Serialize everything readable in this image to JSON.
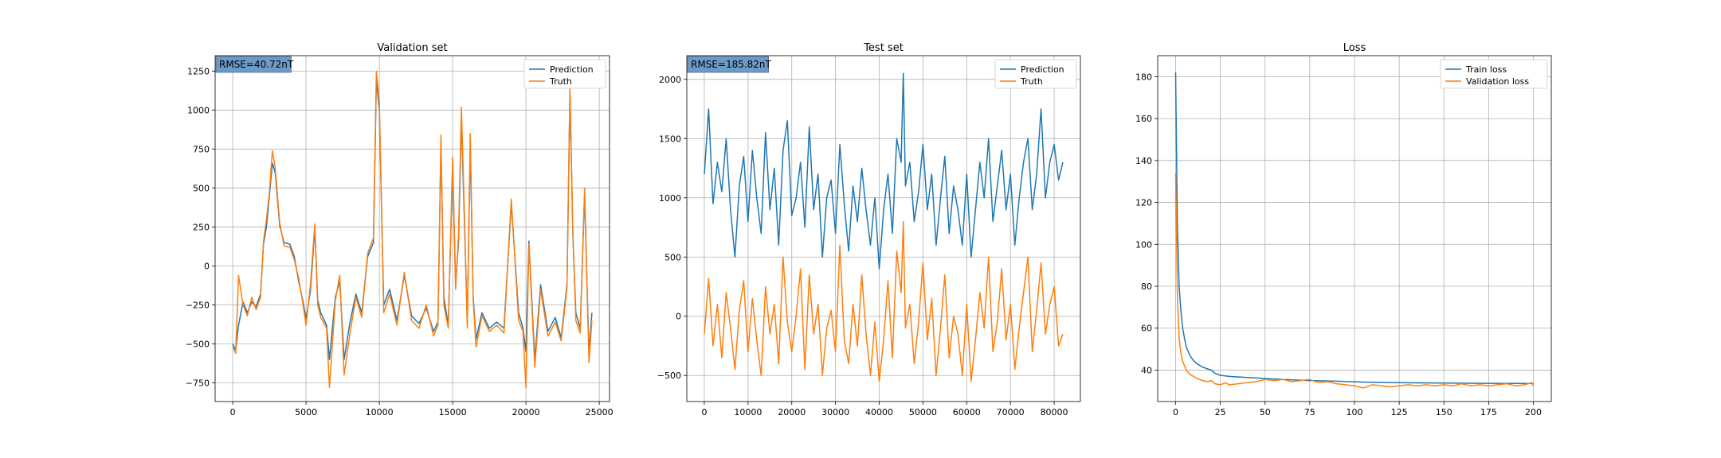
{
  "chart_data": [
    {
      "type": "line",
      "title": "Validation set",
      "xlabel": "",
      "ylabel": "",
      "xlim": [
        -1200,
        25700
      ],
      "ylim": [
        -870,
        1350
      ],
      "xticks": [
        0,
        5000,
        10000,
        15000,
        20000,
        25000
      ],
      "yticks": [
        -750,
        -500,
        -250,
        0,
        250,
        500,
        750,
        1000,
        1250
      ],
      "grid": true,
      "legend_position": "top-right",
      "annotation": "RMSE=40.72nT",
      "series": [
        {
          "name": "Prediction",
          "color": "#1f77b4",
          "x": [
            0,
            200,
            400,
            700,
            1000,
            1300,
            1600,
            1900,
            2100,
            2300,
            2500,
            2700,
            2900,
            3200,
            3500,
            3900,
            4200,
            4500,
            4800,
            5000,
            5300,
            5600,
            5800,
            6000,
            6400,
            6600,
            7000,
            7300,
            7600,
            8000,
            8400,
            8800,
            9200,
            9600,
            9800,
            10000,
            10300,
            10700,
            11200,
            11700,
            12200,
            12700,
            13200,
            13700,
            14000,
            14200,
            14400,
            14700,
            15000,
            15200,
            15400,
            15600,
            15800,
            16000,
            16200,
            16400,
            16600,
            17000,
            17500,
            18000,
            18500,
            19000,
            19500,
            19800,
            20000,
            20200,
            20600,
            21000,
            21500,
            22000,
            22400,
            22800,
            23000,
            23200,
            23400,
            23700,
            24000,
            24300,
            24500
          ],
          "values": [
            -500,
            -540,
            -380,
            -230,
            -300,
            -230,
            -260,
            -180,
            140,
            250,
            450,
            660,
            600,
            260,
            150,
            140,
            60,
            -100,
            -230,
            -340,
            -160,
            240,
            -220,
            -300,
            -380,
            -600,
            -200,
            -100,
            -600,
            -360,
            -180,
            -300,
            60,
            150,
            1200,
            1000,
            -250,
            -150,
            -350,
            -60,
            -320,
            -370,
            -270,
            -420,
            -360,
            780,
            -200,
            -380,
            640,
            -110,
            150,
            950,
            300,
            -360,
            770,
            -200,
            -470,
            -300,
            -400,
            -360,
            -400,
            400,
            -300,
            -400,
            -550,
            160,
            -600,
            -120,
            -420,
            -330,
            -460,
            -120,
            1100,
            200,
            -300,
            -400,
            460,
            -560,
            -300
          ]
        },
        {
          "name": "Truth",
          "color": "#ff7f0e",
          "x": [
            0,
            200,
            400,
            700,
            1000,
            1300,
            1600,
            1900,
            2100,
            2300,
            2500,
            2700,
            2900,
            3200,
            3500,
            3900,
            4200,
            4500,
            4800,
            5000,
            5300,
            5600,
            5800,
            6000,
            6400,
            6600,
            7000,
            7300,
            7600,
            8000,
            8400,
            8800,
            9200,
            9600,
            9800,
            10000,
            10300,
            10700,
            11200,
            11700,
            12200,
            12700,
            13200,
            13700,
            14000,
            14200,
            14400,
            14700,
            15000,
            15200,
            15400,
            15600,
            15800,
            16000,
            16200,
            16400,
            16600,
            17000,
            17500,
            18000,
            18500,
            19000,
            19500,
            19800,
            20000,
            20200,
            20600,
            21000,
            21500,
            22000,
            22400,
            22800,
            23000,
            23200,
            23400,
            23700,
            24000,
            24300,
            24500
          ],
          "values": [
            -520,
            -560,
            -60,
            -250,
            -320,
            -200,
            -280,
            -200,
            160,
            300,
            470,
            740,
            630,
            280,
            130,
            120,
            40,
            -80,
            -250,
            -380,
            -120,
            270,
            -250,
            -330,
            -400,
            -780,
            -220,
            -60,
            -700,
            -430,
            -200,
            -330,
            80,
            180,
            1250,
            1050,
            -300,
            -180,
            -380,
            -40,
            -350,
            -400,
            -250,
            -450,
            -380,
            840,
            -250,
            -400,
            700,
            -150,
            200,
            1020,
            350,
            -400,
            850,
            -220,
            -520,
            -320,
            -420,
            -380,
            -430,
            430,
            -350,
            -420,
            -780,
            140,
            -650,
            -150,
            -450,
            -360,
            -480,
            -140,
            1140,
            220,
            -350,
            -430,
            500,
            -620,
            -350
          ]
        }
      ]
    },
    {
      "type": "line",
      "title": "Test set",
      "xlabel": "",
      "ylabel": "",
      "xlim": [
        -4000,
        86000
      ],
      "ylim": [
        -720,
        2200
      ],
      "xticks": [
        0,
        10000,
        20000,
        30000,
        40000,
        50000,
        60000,
        70000,
        80000
      ],
      "yticks": [
        -500,
        0,
        500,
        1000,
        1500,
        2000
      ],
      "grid": true,
      "legend_position": "top-right",
      "annotation": "RMSE=185.82nT",
      "series": [
        {
          "name": "Prediction",
          "color": "#1f77b4",
          "x": [
            0,
            1000,
            2000,
            3000,
            4000,
            5000,
            6000,
            7000,
            8000,
            9000,
            10000,
            11000,
            12000,
            13000,
            14000,
            15000,
            16000,
            17000,
            18000,
            19000,
            20000,
            21000,
            22000,
            23000,
            24000,
            25000,
            26000,
            27000,
            28000,
            29000,
            30000,
            31000,
            32000,
            33000,
            34000,
            35000,
            36000,
            37000,
            38000,
            39000,
            40000,
            41000,
            42000,
            43000,
            44000,
            45000,
            45500,
            46000,
            47000,
            48000,
            49000,
            50000,
            51000,
            52000,
            53000,
            54000,
            55000,
            56000,
            57000,
            58000,
            59000,
            60000,
            61000,
            62000,
            63000,
            64000,
            65000,
            66000,
            67000,
            68000,
            69000,
            70000,
            71000,
            72000,
            73000,
            74000,
            75000,
            76000,
            77000,
            78000,
            79000,
            80000,
            81000,
            82000
          ],
          "values": [
            1200,
            1750,
            950,
            1300,
            1050,
            1500,
            900,
            500,
            1100,
            1350,
            800,
            1400,
            1000,
            700,
            1550,
            900,
            1250,
            600,
            1400,
            1650,
            850,
            1000,
            1300,
            750,
            1600,
            900,
            1200,
            500,
            1000,
            1150,
            700,
            1450,
            950,
            550,
            1100,
            800,
            1250,
            900,
            600,
            1000,
            400,
            900,
            1200,
            700,
            1500,
            1300,
            2050,
            1100,
            1300,
            800,
            1050,
            1450,
            900,
            1200,
            600,
            1000,
            1350,
            700,
            1100,
            900,
            600,
            1200,
            500,
            900,
            1300,
            1000,
            1500,
            800,
            1100,
            1400,
            900,
            1200,
            600,
            1000,
            1300,
            1500,
            900,
            1200,
            1750,
            1000,
            1300,
            1450,
            1150,
            1300
          ]
        },
        {
          "name": "Truth",
          "color": "#ff7f0e",
          "x": [
            0,
            1000,
            2000,
            3000,
            4000,
            5000,
            6000,
            7000,
            8000,
            9000,
            10000,
            11000,
            12000,
            13000,
            14000,
            15000,
            16000,
            17000,
            18000,
            19000,
            20000,
            21000,
            22000,
            23000,
            24000,
            25000,
            26000,
            27000,
            28000,
            29000,
            30000,
            31000,
            32000,
            33000,
            34000,
            35000,
            36000,
            37000,
            38000,
            39000,
            40000,
            41000,
            42000,
            43000,
            44000,
            45000,
            45500,
            46000,
            47000,
            48000,
            49000,
            50000,
            51000,
            52000,
            53000,
            54000,
            55000,
            56000,
            57000,
            58000,
            59000,
            60000,
            61000,
            62000,
            63000,
            64000,
            65000,
            66000,
            67000,
            68000,
            69000,
            70000,
            71000,
            72000,
            73000,
            74000,
            75000,
            76000,
            77000,
            78000,
            79000,
            80000,
            81000,
            82000
          ],
          "values": [
            -150,
            320,
            -250,
            100,
            -350,
            200,
            -100,
            -450,
            50,
            300,
            -300,
            150,
            -200,
            -500,
            250,
            -150,
            100,
            -400,
            500,
            -50,
            -300,
            0,
            400,
            -450,
            350,
            -150,
            100,
            -500,
            -100,
            50,
            -300,
            600,
            -200,
            -400,
            100,
            -250,
            350,
            -150,
            -500,
            -50,
            -550,
            -200,
            300,
            -350,
            550,
            200,
            800,
            -100,
            100,
            -400,
            -50,
            450,
            -200,
            150,
            -500,
            -100,
            350,
            -350,
            0,
            -150,
            -500,
            100,
            -550,
            -200,
            200,
            -100,
            500,
            -300,
            -50,
            400,
            -200,
            100,
            -450,
            -100,
            200,
            500,
            -300,
            50,
            450,
            -150,
            100,
            250,
            -250,
            -150
          ]
        }
      ]
    },
    {
      "type": "line",
      "title": "Loss",
      "xlabel": "",
      "ylabel": "",
      "xlim": [
        -10,
        210
      ],
      "ylim": [
        25,
        190
      ],
      "xticks": [
        0,
        25,
        50,
        75,
        100,
        125,
        150,
        175,
        200
      ],
      "yticks": [
        40,
        60,
        80,
        100,
        120,
        140,
        160,
        180
      ],
      "grid": true,
      "legend_position": "top-right",
      "series": [
        {
          "name": "Train loss",
          "color": "#1f77b4",
          "x": [
            0,
            1,
            2,
            3,
            4,
            5,
            6,
            8,
            10,
            12,
            15,
            18,
            20,
            22,
            25,
            30,
            40,
            50,
            60,
            75,
            90,
            100,
            110,
            125,
            150,
            175,
            200
          ],
          "values": [
            182,
            110,
            80,
            68,
            60,
            55,
            51,
            47,
            44.5,
            43,
            41.5,
            40.5,
            40,
            38.5,
            37.5,
            37,
            36.5,
            36,
            35.5,
            35,
            34.7,
            34.4,
            34.2,
            34,
            33.8,
            33.7,
            33.6
          ]
        },
        {
          "name": "Validation loss",
          "color": "#ff7f0e",
          "x": [
            0,
            1,
            2,
            3,
            4,
            5,
            6,
            8,
            10,
            12,
            15,
            18,
            20,
            22,
            25,
            28,
            30,
            35,
            40,
            45,
            50,
            55,
            60,
            65,
            70,
            75,
            80,
            85,
            90,
            95,
            100,
            105,
            110,
            115,
            120,
            125,
            130,
            135,
            140,
            145,
            150,
            155,
            160,
            165,
            170,
            175,
            180,
            185,
            190,
            195,
            199,
            200
          ],
          "values": [
            134,
            75,
            55,
            48,
            44,
            42,
            40,
            38,
            37,
            36,
            35,
            34.5,
            35,
            33.5,
            33,
            34,
            33,
            33.5,
            34,
            34.5,
            35.5,
            35,
            35.5,
            34.5,
            35,
            35.5,
            34,
            34.5,
            33.5,
            33,
            32.5,
            31.5,
            33,
            32.5,
            32,
            32.5,
            33,
            32.5,
            33,
            32.5,
            33,
            32.5,
            33.5,
            32.5,
            33,
            32.5,
            33,
            33.5,
            32.5,
            33,
            34,
            32.5
          ]
        }
      ]
    }
  ]
}
